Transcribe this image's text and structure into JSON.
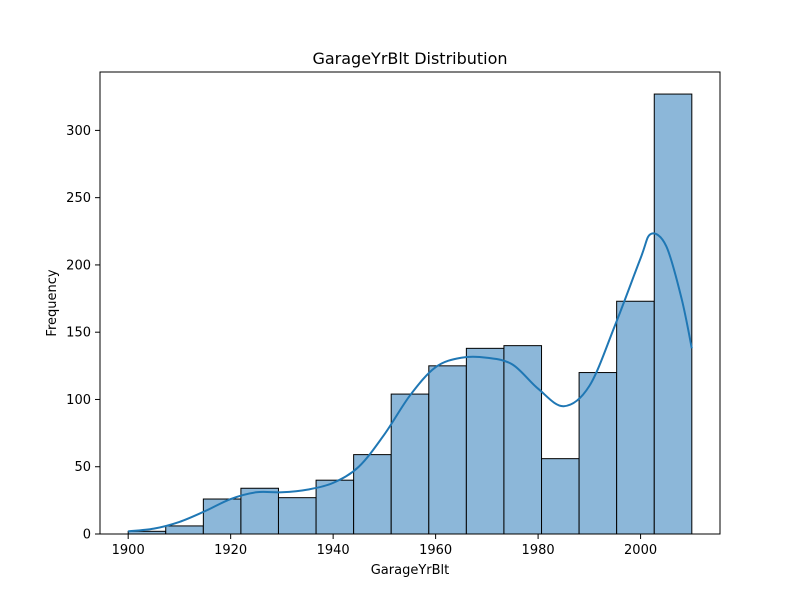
{
  "chart_data": {
    "type": "bar",
    "title": "GarageYrBlt Distribution",
    "xlabel": "GarageYrBlt",
    "ylabel": "Frequency",
    "xlim": [
      1894.5,
      2015.5
    ],
    "ylim": [
      0,
      343.4
    ],
    "bin_edges": [
      1900,
      1907.33,
      1914.67,
      1922,
      1929.33,
      1936.67,
      1944,
      1951.33,
      1958.67,
      1966,
      1973.33,
      1980.67,
      1988,
      1995.33,
      2002.67,
      2010
    ],
    "values": [
      2,
      6,
      26,
      34,
      27,
      40,
      59,
      104,
      125,
      138,
      140,
      56,
      120,
      173,
      327
    ],
    "xticks": [
      1900,
      1920,
      1940,
      1960,
      1980,
      2000
    ],
    "yticks": [
      0,
      50,
      100,
      150,
      200,
      250,
      300
    ],
    "bar_color": "#8cb7d9",
    "bar_edge_color": "#000000",
    "kde_color": "#1f77b4",
    "kde": {
      "x": [
        1900,
        1905,
        1910,
        1915,
        1920,
        1925,
        1930,
        1935,
        1940,
        1945,
        1950,
        1955,
        1960,
        1965,
        1970,
        1975,
        1980,
        1985,
        1990,
        1995,
        2000,
        2002,
        2005,
        2008,
        2010
      ],
      "y": [
        2,
        4,
        9,
        17,
        26,
        31,
        31,
        33,
        38,
        50,
        74,
        103,
        124,
        131,
        131,
        126,
        108,
        95,
        110,
        155,
        205,
        223,
        214,
        175,
        138
      ]
    },
    "grid": false,
    "legend": "none"
  }
}
